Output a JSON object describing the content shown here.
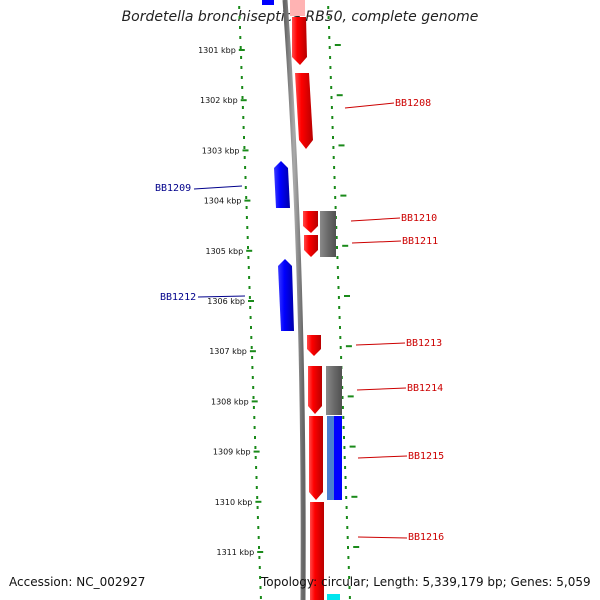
{
  "title": "Bordetella bronchiseptica RB50, complete genome",
  "footer": {
    "accession": "Accession: NC_002927",
    "topology": "Topology: circular; Length: 5,339,179 bp; Genes: 5,059"
  },
  "scale": {
    "unit": "kbp",
    "ticks": [
      "1301 kbp",
      "1302 kbp",
      "1303 kbp",
      "1304 kbp",
      "1305 kbp",
      "1306 kbp",
      "1307 kbp",
      "1308 kbp",
      "1309 kbp",
      "1310 kbp",
      "1311 kbp"
    ]
  },
  "colors": {
    "forward_gene": "#ff0000",
    "reverse_gene": "#0000ff",
    "label_forward": "#cc0000",
    "label_reverse": "#00008b",
    "rna_feature": "#6e6e6e",
    "other_feature": "#1e5fd8",
    "backbone": "#888888",
    "tick": "#1a8a1a"
  },
  "labels": {
    "left": [
      "BB1209",
      "BB1212"
    ],
    "right": [
      "BB1208",
      "BB1210",
      "BB1211",
      "BB1213",
      "BB1214",
      "BB1215",
      "BB1216"
    ]
  }
}
